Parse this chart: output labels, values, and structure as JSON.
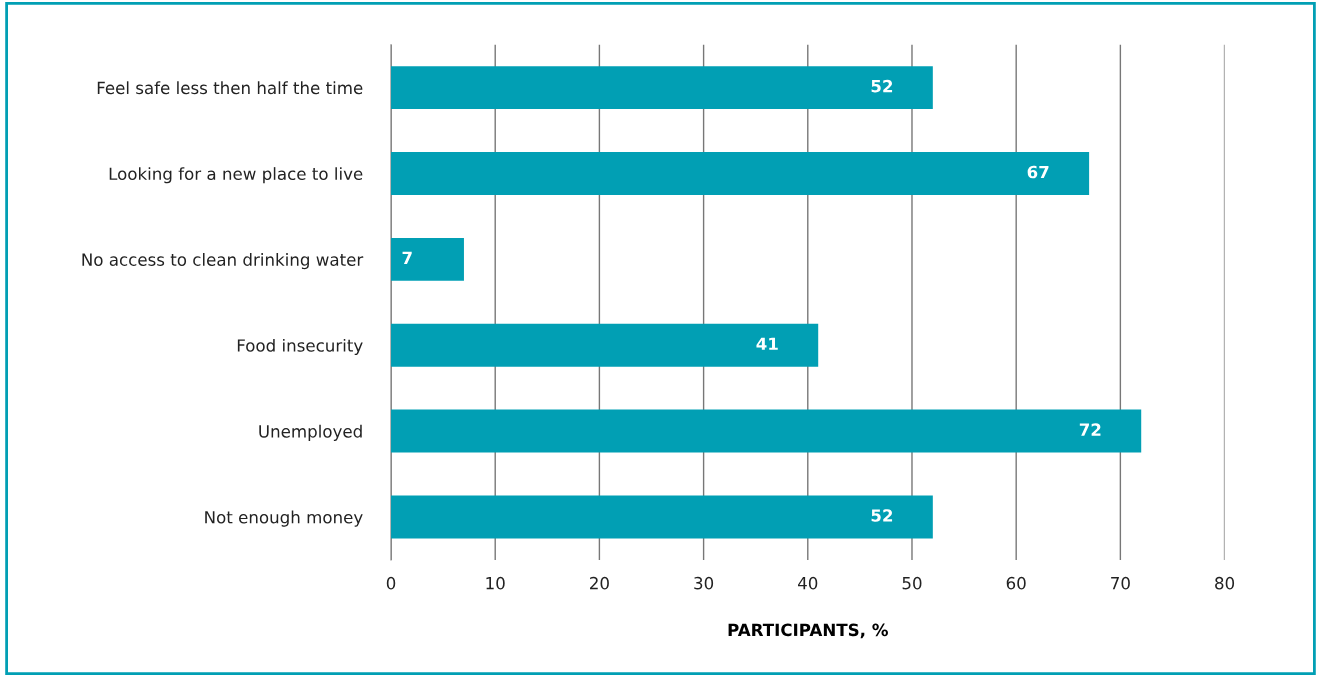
{
  "chart_data": {
    "type": "bar",
    "orientation": "horizontal",
    "xlabel": "PARTICIPANTS, %",
    "categories": [
      "Feel safe less then half the time",
      "Looking for a new place to live",
      "No access to clean drinking water",
      "Food insecurity",
      "Unemployed",
      "Not enough money"
    ],
    "values": [
      52,
      67,
      7,
      41,
      72,
      52
    ],
    "color": "#019fb4",
    "xlim": [
      0,
      80
    ],
    "xticks": [
      0,
      10,
      20,
      30,
      40,
      50,
      60,
      70,
      80
    ],
    "grid": "x",
    "data_labels": true
  }
}
